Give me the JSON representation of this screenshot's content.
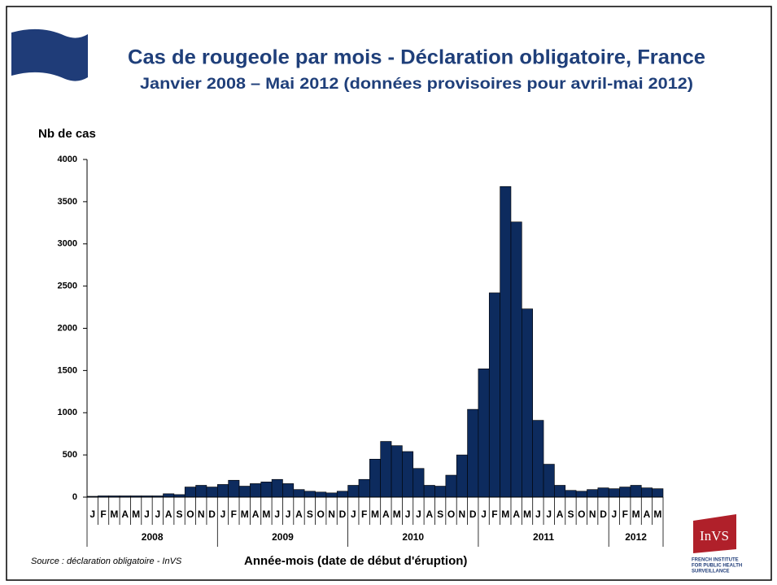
{
  "chart_data": {
    "type": "bar",
    "title": "Cas de rougeole par mois - Déclaration obligatoire, France",
    "subtitle": "Janvier 2008 – Mai 2012 (données provisoires pour avril-mai 2012)",
    "y_label": "Nb de cas",
    "x_label": "Année-mois (date de début d'éruption)",
    "source": "Source : déclaration obligatoire - InVS",
    "categories": [
      "J",
      "F",
      "M",
      "A",
      "M",
      "J",
      "J",
      "A",
      "S",
      "O",
      "N",
      "D",
      "J",
      "F",
      "M",
      "A",
      "M",
      "J",
      "J",
      "A",
      "S",
      "O",
      "N",
      "D",
      "J",
      "F",
      "M",
      "A",
      "M",
      "J",
      "J",
      "A",
      "S",
      "O",
      "N",
      "D",
      "J",
      "F",
      "M",
      "A",
      "M",
      "J",
      "J",
      "A",
      "S",
      "O",
      "N",
      "D",
      "J",
      "F",
      "M",
      "A",
      "M"
    ],
    "years": [
      "2008",
      "2009",
      "2010",
      "2011",
      "2012"
    ],
    "values": [
      10,
      15,
      15,
      15,
      15,
      15,
      15,
      40,
      30,
      120,
      140,
      120,
      150,
      200,
      130,
      160,
      180,
      210,
      160,
      90,
      70,
      60,
      50,
      70,
      140,
      210,
      450,
      660,
      610,
      540,
      340,
      140,
      130,
      260,
      500,
      1040,
      1520,
      2420,
      3680,
      3260,
      2230,
      910,
      390,
      140,
      80,
      70,
      90,
      110,
      100,
      120,
      140,
      110,
      100
    ],
    "color": "#0d2b5e",
    "ylim": [
      0,
      4000
    ],
    "yticks": [
      0,
      500,
      1000,
      1500,
      2000,
      2500,
      3000,
      3500,
      4000
    ]
  },
  "logo": {
    "name": "InVS",
    "lines": [
      "FRENCH INSTITUTE",
      "FOR PUBLIC HEALTH",
      "SURVEILLANCE"
    ]
  }
}
